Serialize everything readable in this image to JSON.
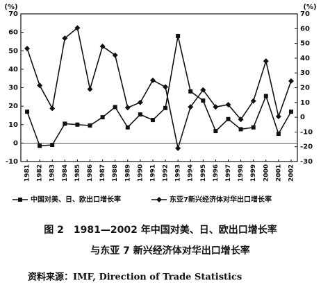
{
  "chart_data": {
    "type": "line",
    "title": "图 2　1981—2002 年中国对美、日、欧出口增长率",
    "subtitle": "与东亚 7 新兴经济体对华出口增长率",
    "source": "资料来源：IMF, Direction of Trade Statistics",
    "y_label": "(%)",
    "y2_label": "(%)",
    "categories": [
      "1981",
      "1982",
      "1983",
      "1984",
      "1985",
      "1986",
      "1987",
      "1988",
      "1989",
      "1990",
      "1991",
      "1992",
      "1993",
      "1994",
      "1995",
      "1996",
      "1997",
      "1998",
      "1999",
      "2000",
      "2001",
      "2002"
    ],
    "series": [
      {
        "name": "中国对美、日、欧出口增长率",
        "color": "#111111",
        "marker": "square",
        "values": [
          17,
          -1.5,
          -1,
          10.5,
          10,
          9.5,
          14,
          19.5,
          8.5,
          15.5,
          12.5,
          19,
          58,
          28,
          23,
          6.5,
          13,
          7.5,
          8.5,
          25.5,
          5,
          17
        ]
      },
      {
        "name": "东亚7新兴经济体对华出口增长率",
        "color": "#111111",
        "marker": "diamond",
        "axis": "y2",
        "values": [
          46.5,
          21.5,
          6,
          53.5,
          60.5,
          19,
          48,
          42,
          6.5,
          10,
          25,
          20.5,
          -21,
          7,
          18.5,
          7,
          8.5,
          -1.5,
          11,
          38,
          0.5,
          24.5
        ]
      }
    ],
    "ylim": [
      -10,
      70
    ],
    "yticks": [
      -10,
      0,
      10,
      20,
      30,
      40,
      50,
      60,
      70
    ],
    "y2lim": [
      -30,
      70
    ],
    "y2ticks": [
      -30,
      -20,
      -10,
      0,
      10,
      20,
      30,
      40,
      50,
      60,
      70
    ]
  }
}
